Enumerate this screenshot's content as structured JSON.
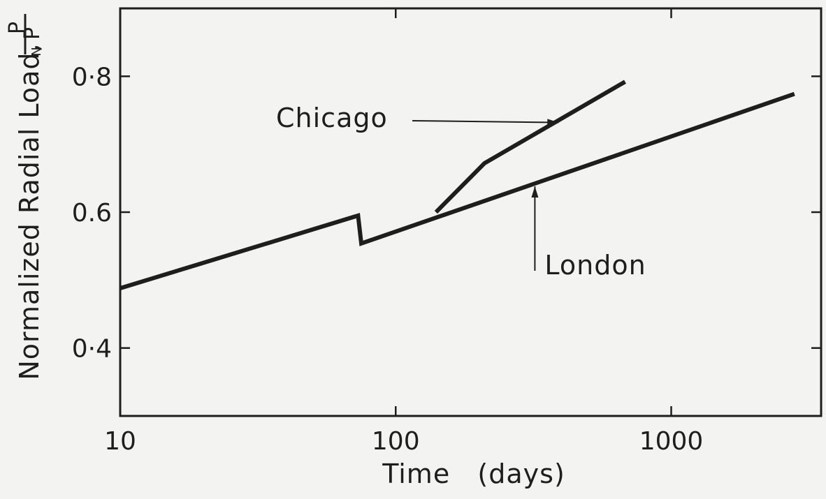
{
  "chart_data": {
    "type": "line",
    "xscale": "log",
    "xlabel": "Time   (days)",
    "ylabel": "Normalized Radial Load,",
    "ylabel_fraction": {
      "numerator": "P",
      "denominator": "P",
      "denominator_sub": "N"
    },
    "xlim": [
      10,
      3500
    ],
    "ylim": [
      0.3,
      0.9
    ],
    "xticks": [
      10,
      100,
      1000
    ],
    "xtick_labels": [
      "10",
      "100",
      "1000"
    ],
    "yticks": [
      0.4,
      0.6,
      0.8
    ],
    "ytick_labels": [
      "0·4",
      "0.6",
      "0·8"
    ],
    "grid": false,
    "series": [
      {
        "name": "London",
        "x": [
          10,
          73,
          73,
          75,
          2800
        ],
        "y": [
          0.488,
          0.595,
          0.595,
          0.554,
          0.774
        ]
      },
      {
        "name": "Chicago",
        "x": [
          140,
          210,
          680
        ],
        "y": [
          0.6,
          0.672,
          0.792
        ]
      }
    ],
    "annotations": [
      {
        "text": "Chicago",
        "arrow_to": {
          "x": 390,
          "y": 0.732
        }
      },
      {
        "text": "London",
        "arrow_to": {
          "x": 320,
          "y": 0.638
        }
      }
    ],
    "colors": {
      "ink": "#1e1e1e",
      "background": "#f3f3f1"
    }
  }
}
